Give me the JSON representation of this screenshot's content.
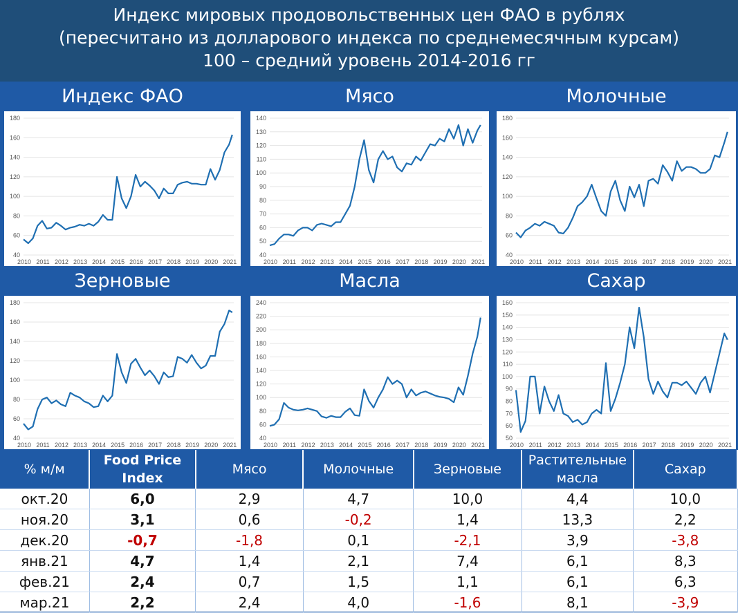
{
  "header": {
    "line1": "Индекс мировых продовольственных цен ФАО в рублях",
    "line2": "(пересчитано из долларового индекса по среднемесячным курсам)",
    "line3": "100 – средний уровень 2014-2016 гг"
  },
  "colors": {
    "line": "#1f6fb2",
    "header_bg": "#1f4e79",
    "panel_bg": "#1f5aa6",
    "negative": "#c00000"
  },
  "chart_data": [
    {
      "type": "line",
      "title": "Индекс ФАО",
      "x_ticks": [
        "2010",
        "2011",
        "2012",
        "2013",
        "2014",
        "2015",
        "2016",
        "2017",
        "2018",
        "2019",
        "2020",
        "2021"
      ],
      "y_ticks": [
        40,
        60,
        80,
        100,
        120,
        140,
        160,
        180
      ],
      "ylim": [
        40,
        180
      ],
      "xlim": [
        2010,
        2021.25
      ],
      "x": [
        2010.0,
        2010.25,
        2010.5,
        2010.75,
        2011.0,
        2011.25,
        2011.5,
        2011.75,
        2012.0,
        2012.25,
        2012.5,
        2012.75,
        2013.0,
        2013.25,
        2013.5,
        2013.75,
        2014.0,
        2014.25,
        2014.5,
        2014.75,
        2015.0,
        2015.25,
        2015.5,
        2015.75,
        2016.0,
        2016.25,
        2016.5,
        2016.75,
        2017.0,
        2017.25,
        2017.5,
        2017.75,
        2018.0,
        2018.25,
        2018.5,
        2018.75,
        2019.0,
        2019.25,
        2019.5,
        2019.75,
        2020.0,
        2020.25,
        2020.5,
        2020.75,
        2021.0,
        2021.17
      ],
      "y": [
        56,
        52,
        57,
        70,
        75,
        67,
        68,
        73,
        70,
        66,
        68,
        69,
        71,
        70,
        72,
        70,
        74,
        81,
        76,
        76,
        120,
        98,
        88,
        100,
        122,
        110,
        115,
        111,
        106,
        98,
        108,
        103,
        103,
        112,
        114,
        115,
        113,
        113,
        112,
        112,
        128,
        117,
        127,
        145,
        153,
        163
      ]
    },
    {
      "type": "line",
      "title": "Мясо",
      "x_ticks": [
        "2010",
        "2011",
        "2012",
        "2013",
        "2014",
        "2015",
        "2016",
        "2017",
        "2018",
        "2019",
        "2020",
        "2021"
      ],
      "y_ticks": [
        40,
        50,
        60,
        70,
        80,
        90,
        100,
        110,
        120,
        130,
        140
      ],
      "ylim": [
        40,
        140
      ],
      "xlim": [
        2010,
        2021.25
      ],
      "x": [
        2010.0,
        2010.25,
        2010.5,
        2010.75,
        2011.0,
        2011.25,
        2011.5,
        2011.75,
        2012.0,
        2012.25,
        2012.5,
        2012.75,
        2013.0,
        2013.25,
        2013.5,
        2013.75,
        2014.0,
        2014.25,
        2014.5,
        2014.75,
        2015.0,
        2015.25,
        2015.5,
        2015.75,
        2016.0,
        2016.25,
        2016.5,
        2016.75,
        2017.0,
        2017.25,
        2017.5,
        2017.75,
        2018.0,
        2018.25,
        2018.5,
        2018.75,
        2019.0,
        2019.25,
        2019.5,
        2019.75,
        2020.0,
        2020.25,
        2020.5,
        2020.75,
        2021.0,
        2021.17
      ],
      "y": [
        47,
        48,
        52,
        55,
        55,
        54,
        58,
        60,
        60,
        58,
        62,
        63,
        62,
        61,
        64,
        64,
        70,
        76,
        90,
        110,
        124,
        102,
        93,
        110,
        116,
        110,
        112,
        104,
        101,
        107,
        106,
        112,
        109,
        115,
        121,
        120,
        125,
        123,
        132,
        125,
        135,
        120,
        132,
        122,
        131,
        135
      ]
    },
    {
      "type": "line",
      "title": "Молочные",
      "x_ticks": [
        "2010",
        "2011",
        "2012",
        "2013",
        "2014",
        "2015",
        "2016",
        "2017",
        "2018",
        "2019",
        "2020",
        "2021"
      ],
      "y_ticks": [
        40,
        60,
        80,
        100,
        120,
        140,
        160,
        180
      ],
      "ylim": [
        40,
        180
      ],
      "xlim": [
        2010,
        2021.25
      ],
      "x": [
        2010.0,
        2010.25,
        2010.5,
        2010.75,
        2011.0,
        2011.25,
        2011.5,
        2011.75,
        2012.0,
        2012.25,
        2012.5,
        2012.75,
        2013.0,
        2013.25,
        2013.5,
        2013.75,
        2014.0,
        2014.25,
        2014.5,
        2014.75,
        2015.0,
        2015.25,
        2015.5,
        2015.75,
        2016.0,
        2016.25,
        2016.5,
        2016.75,
        2017.0,
        2017.25,
        2017.5,
        2017.75,
        2018.0,
        2018.25,
        2018.5,
        2018.75,
        2019.0,
        2019.25,
        2019.5,
        2019.75,
        2020.0,
        2020.25,
        2020.5,
        2020.75,
        2021.0,
        2021.17
      ],
      "y": [
        63,
        58,
        65,
        68,
        72,
        70,
        74,
        72,
        70,
        63,
        62,
        68,
        78,
        90,
        94,
        100,
        112,
        98,
        85,
        80,
        105,
        116,
        96,
        85,
        110,
        99,
        112,
        90,
        116,
        118,
        113,
        132,
        125,
        116,
        136,
        126,
        130,
        130,
        128,
        124,
        124,
        128,
        142,
        140,
        155,
        166
      ]
    },
    {
      "type": "line",
      "title": "Зерновые",
      "x_ticks": [
        "2010",
        "2011",
        "2012",
        "2013",
        "2014",
        "2015",
        "2016",
        "2017",
        "2018",
        "2019",
        "2020",
        "2021"
      ],
      "y_ticks": [
        40,
        60,
        80,
        100,
        120,
        140,
        160,
        180
      ],
      "ylim": [
        40,
        180
      ],
      "xlim": [
        2010,
        2021.25
      ],
      "x": [
        2010.0,
        2010.25,
        2010.5,
        2010.75,
        2011.0,
        2011.25,
        2011.5,
        2011.75,
        2012.0,
        2012.25,
        2012.5,
        2012.75,
        2013.0,
        2013.25,
        2013.5,
        2013.75,
        2014.0,
        2014.25,
        2014.5,
        2014.75,
        2015.0,
        2015.25,
        2015.5,
        2015.75,
        2016.0,
        2016.25,
        2016.5,
        2016.75,
        2017.0,
        2017.25,
        2017.5,
        2017.75,
        2018.0,
        2018.25,
        2018.5,
        2018.75,
        2019.0,
        2019.25,
        2019.5,
        2019.75,
        2020.0,
        2020.25,
        2020.5,
        2020.75,
        2021.0,
        2021.17
      ],
      "y": [
        55,
        49,
        52,
        70,
        80,
        82,
        76,
        79,
        75,
        73,
        87,
        84,
        82,
        78,
        76,
        72,
        73,
        84,
        78,
        84,
        127,
        108,
        97,
        117,
        122,
        113,
        105,
        110,
        104,
        96,
        108,
        103,
        104,
        124,
        122,
        118,
        126,
        118,
        112,
        115,
        125,
        125,
        150,
        158,
        172,
        170
      ]
    },
    {
      "type": "line",
      "title": "Масла",
      "x_ticks": [
        "2010",
        "2011",
        "2012",
        "2013",
        "2014",
        "2015",
        "2016",
        "2017",
        "2018",
        "2019",
        "2020",
        "2021"
      ],
      "y_ticks": [
        40,
        60,
        80,
        100,
        120,
        140,
        160,
        180,
        200,
        220,
        240
      ],
      "ylim": [
        40,
        240
      ],
      "xlim": [
        2010,
        2021.25
      ],
      "x": [
        2010.0,
        2010.25,
        2010.5,
        2010.75,
        2011.0,
        2011.25,
        2011.5,
        2011.75,
        2012.0,
        2012.25,
        2012.5,
        2012.75,
        2013.0,
        2013.25,
        2013.5,
        2013.75,
        2014.0,
        2014.25,
        2014.5,
        2014.75,
        2015.0,
        2015.25,
        2015.5,
        2015.75,
        2016.0,
        2016.25,
        2016.5,
        2016.75,
        2017.0,
        2017.25,
        2017.5,
        2017.75,
        2018.0,
        2018.25,
        2018.5,
        2018.75,
        2019.0,
        2019.25,
        2019.5,
        2019.75,
        2020.0,
        2020.25,
        2020.5,
        2020.75,
        2021.0,
        2021.17
      ],
      "y": [
        58,
        60,
        68,
        92,
        85,
        82,
        81,
        82,
        84,
        82,
        80,
        72,
        70,
        73,
        71,
        71,
        79,
        84,
        74,
        73,
        112,
        95,
        85,
        100,
        112,
        130,
        120,
        125,
        120,
        100,
        112,
        103,
        107,
        109,
        106,
        103,
        101,
        100,
        98,
        93,
        115,
        104,
        132,
        165,
        190,
        218
      ]
    },
    {
      "type": "line",
      "title": "Сахар",
      "x_ticks": [
        "2010",
        "2011",
        "2012",
        "2013",
        "2014",
        "2015",
        "2016",
        "2017",
        "2018",
        "2019",
        "2020",
        "2021"
      ],
      "y_ticks": [
        50,
        60,
        70,
        80,
        90,
        100,
        110,
        120,
        130,
        140,
        150,
        160
      ],
      "ylim": [
        50,
        160
      ],
      "xlim": [
        2010,
        2021.25
      ],
      "x": [
        2010.0,
        2010.25,
        2010.5,
        2010.75,
        2011.0,
        2011.25,
        2011.5,
        2011.75,
        2012.0,
        2012.25,
        2012.5,
        2012.75,
        2013.0,
        2013.25,
        2013.5,
        2013.75,
        2014.0,
        2014.25,
        2014.5,
        2014.75,
        2015.0,
        2015.25,
        2015.5,
        2015.75,
        2016.0,
        2016.25,
        2016.5,
        2016.75,
        2017.0,
        2017.25,
        2017.5,
        2017.75,
        2018.0,
        2018.25,
        2018.5,
        2018.75,
        2019.0,
        2019.25,
        2019.5,
        2019.75,
        2020.0,
        2020.25,
        2020.5,
        2020.75,
        2021.0,
        2021.17
      ],
      "y": [
        89,
        55,
        64,
        100,
        100,
        70,
        92,
        80,
        72,
        85,
        70,
        68,
        63,
        65,
        61,
        63,
        70,
        73,
        70,
        111,
        72,
        82,
        95,
        110,
        140,
        123,
        156,
        132,
        98,
        86,
        96,
        88,
        83,
        95,
        95,
        93,
        96,
        91,
        86,
        95,
        100,
        87,
        103,
        119,
        135,
        130
      ]
    }
  ],
  "table": {
    "columns": [
      "% м/м",
      "Food Price Index",
      "Мясо",
      "Молочные",
      "Зерновые",
      "Растительные масла",
      "Сахар"
    ],
    "rows": [
      {
        "label": "окт.20",
        "values": [
          "6,0",
          "2,9",
          "4,7",
          "10,0",
          "4,4",
          "10,0"
        ]
      },
      {
        "label": "ноя.20",
        "values": [
          "3,1",
          "0,6",
          "-0,2",
          "1,4",
          "13,3",
          "2,2"
        ]
      },
      {
        "label": "дек.20",
        "values": [
          "-0,7",
          "-1,8",
          "0,1",
          "-2,1",
          "3,9",
          "-3,8"
        ]
      },
      {
        "label": "янв.21",
        "values": [
          "4,7",
          "1,4",
          "2,1",
          "7,4",
          "6,1",
          "8,3"
        ]
      },
      {
        "label": "фев.21",
        "values": [
          "2,4",
          "0,7",
          "1,5",
          "1,1",
          "6,1",
          "6,3"
        ]
      },
      {
        "label": "мар.21",
        "values": [
          "2,2",
          "2,4",
          "4,0",
          "-1,6",
          "8,1",
          "-3,9"
        ]
      }
    ]
  }
}
